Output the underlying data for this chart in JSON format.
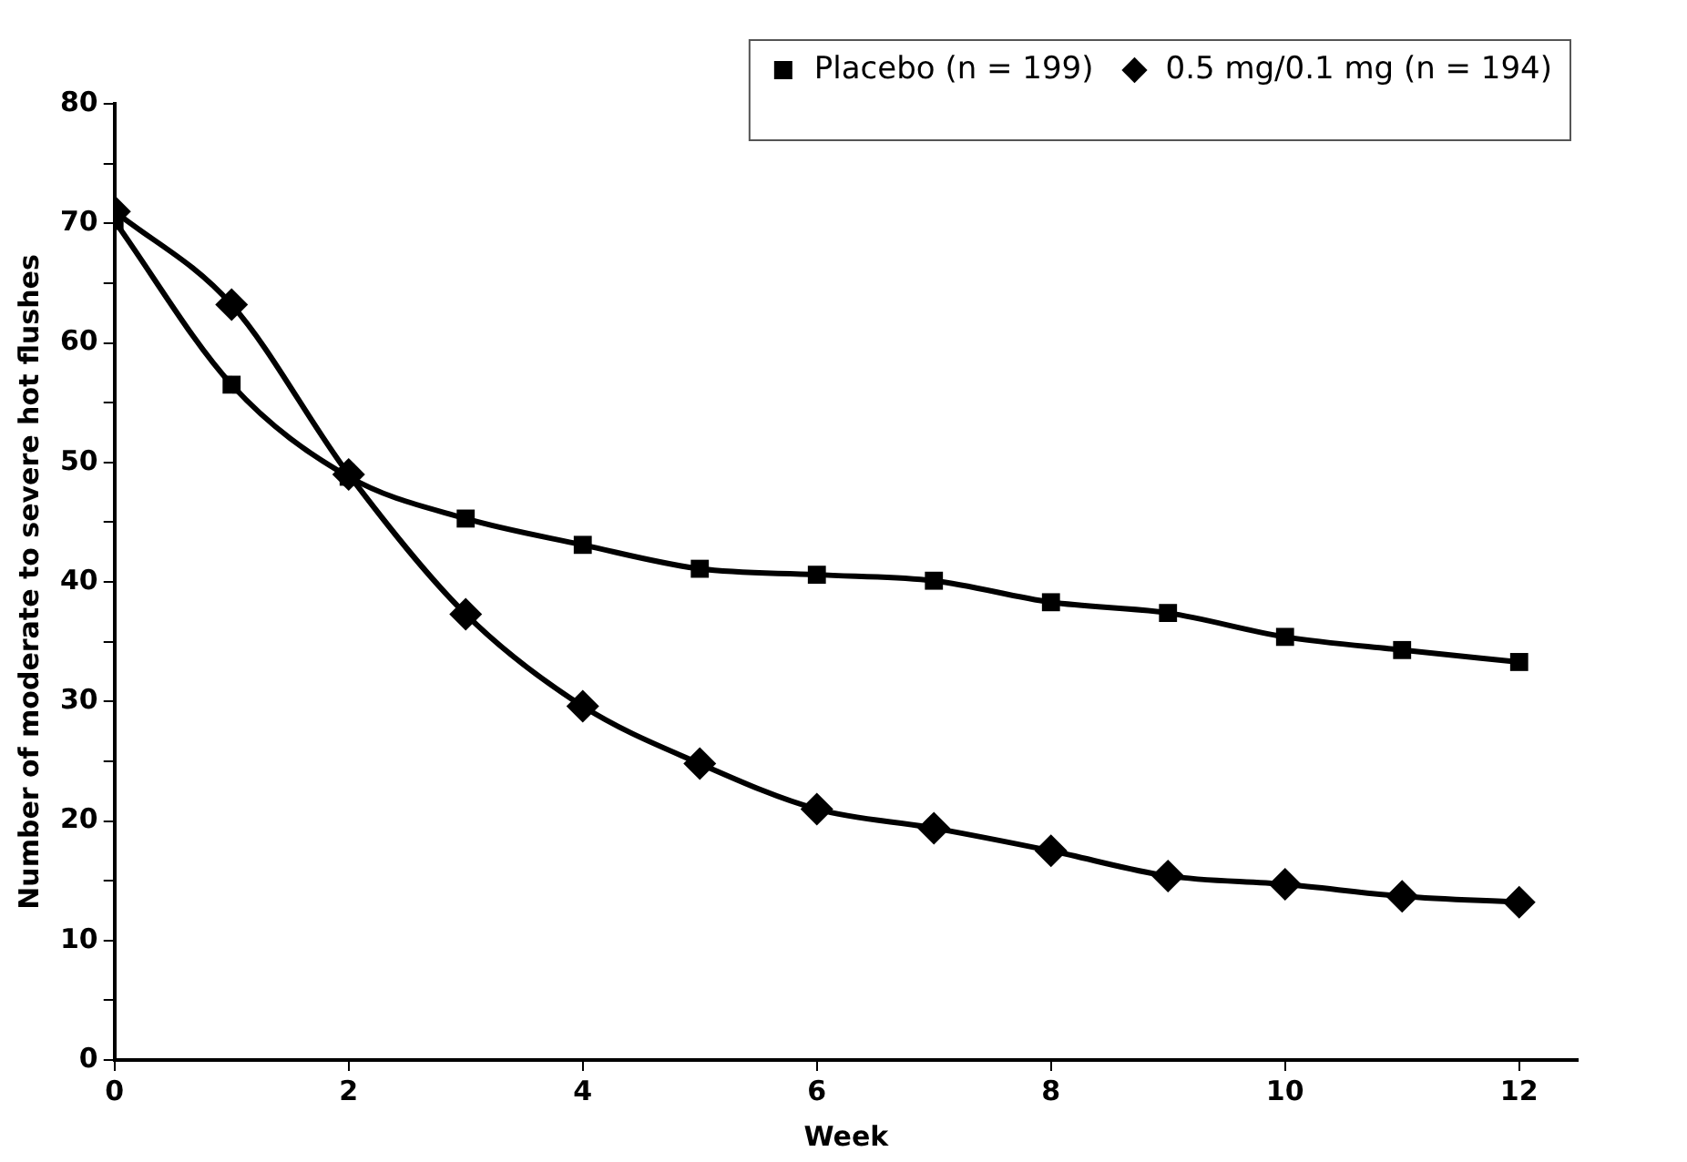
{
  "chart_data": {
    "type": "line",
    "xlabel": "Week",
    "ylabel": "Number of moderate to severe hot flushes",
    "x": [
      0,
      1,
      2,
      3,
      4,
      5,
      6,
      7,
      8,
      9,
      10,
      11,
      12
    ],
    "series": [
      {
        "name": "0.5 mg/0.1 mg (n = 194)",
        "color": "#000000",
        "marker": "diamond",
        "values": [
          71,
          63.2,
          49,
          37.3,
          29.6,
          24.8,
          21,
          19.4,
          17.5,
          15.4,
          14.7,
          13.7,
          13.2
        ]
      },
      {
        "name": "Placebo (n = 199)",
        "color": "#000000",
        "marker": "square",
        "values": [
          70.2,
          56.5,
          48.8,
          45.3,
          43.1,
          41.1,
          40.6,
          40.1,
          38.3,
          37.4,
          35.4,
          34.3,
          33.3
        ]
      }
    ],
    "xlim": [
      0,
      12.5
    ],
    "xticks": [
      0,
      2,
      4,
      6,
      8,
      10,
      12
    ],
    "ylim": [
      0,
      80
    ],
    "yticks": [
      0,
      {
        "value": 5,
        "label": null
      },
      10,
      {
        "value": 15,
        "label": null
      },
      20,
      {
        "value": 25,
        "label": null
      },
      30,
      {
        "value": 35,
        "label": null
      },
      40,
      {
        "value": 45,
        "label": null
      },
      50,
      {
        "value": 55,
        "label": null
      },
      60,
      {
        "value": 65,
        "label": null
      },
      70,
      {
        "value": 75,
        "label": null
      },
      80
    ],
    "grid": false,
    "legend": "top right",
    "line_style": "solid"
  }
}
